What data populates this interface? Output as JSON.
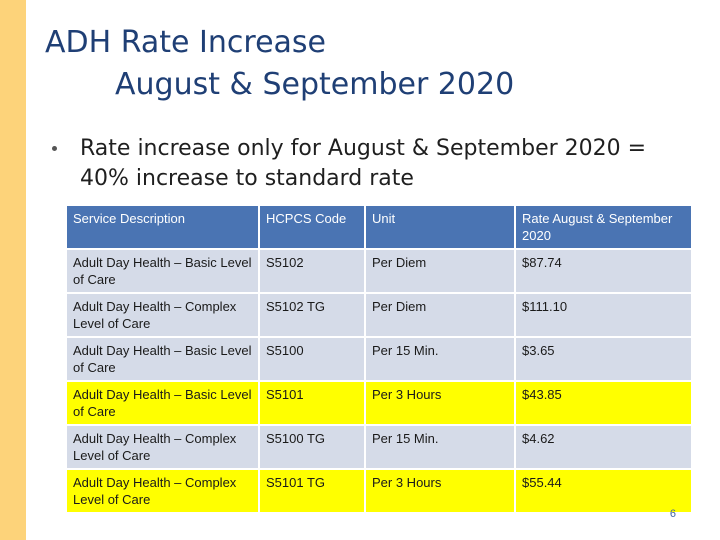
{
  "slide": {
    "title_line1": "ADH Rate Increase",
    "title_line2": "August & September 2020",
    "bullet": "Rate increase only for August & September 2020 = 40% increase to standard rate",
    "page_number": "6",
    "accent_color": "#fdd37a",
    "title_color": "#1f3f75",
    "header_color": "#4a74b3",
    "highlight_color": "#ffff00"
  },
  "table": {
    "headers": [
      "Service Description",
      "HCPCS Code",
      "Unit",
      "Rate August & September 2020"
    ],
    "rows": [
      {
        "description": "Adult Day Health – Basic Level of Care",
        "code": "S5102",
        "unit": "Per Diem",
        "rate": "$87.74",
        "highlighted": false
      },
      {
        "description": "Adult Day Health – Complex Level of Care",
        "code": "S5102 TG",
        "unit": "Per Diem",
        "rate": "$111.10",
        "highlighted": false
      },
      {
        "description": "Adult Day Health – Basic Level of Care",
        "code": "S5100",
        "unit": "Per 15 Min.",
        "rate": "$3.65",
        "highlighted": false
      },
      {
        "description": "Adult Day Health – Basic Level of Care",
        "code": "S5101",
        "unit": "Per 3 Hours",
        "rate": "$43.85",
        "highlighted": true
      },
      {
        "description": "Adult Day Health – Complex Level of Care",
        "code": "S5100 TG",
        "unit": "Per 15 Min.",
        "rate": "$4.62",
        "highlighted": false
      },
      {
        "description": "Adult Day Health – Complex Level of Care",
        "code": "S5101 TG",
        "unit": "Per 3 Hours",
        "rate": "$55.44",
        "highlighted": true
      }
    ]
  }
}
